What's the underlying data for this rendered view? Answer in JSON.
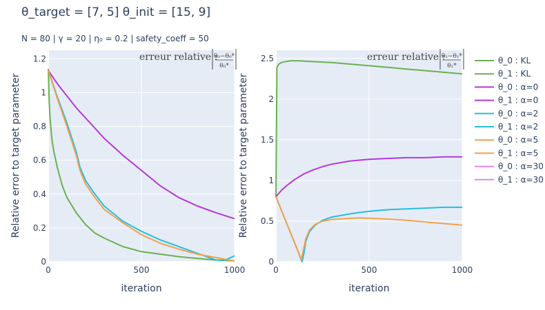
{
  "chart_data": {
    "type": "line",
    "title": "θ_target = [7, 5]     θ_init = [15, 9]",
    "subtitle": "N = 80  |  γ = 20  |  η₀ = 0.2  | safety_coeff = 50",
    "xlabel": "iteration",
    "ylabel": "Relative error to target parameter",
    "grid": true,
    "legend_position": "right",
    "legend": [
      "θ_0 : KL",
      "θ_1 : KL",
      "θ_0 : α=0",
      "θ_1 : α=0",
      "θ_0 : α=2",
      "θ_1 : α=2",
      "θ_0 : α=5",
      "θ_1 : α=5",
      "θ_0 : α=30",
      "θ_1 : α=30"
    ],
    "colors": {
      "KL": "#6ab04c",
      "a0": "#b537d8",
      "a2": "#22bfe0",
      "a5": "#f4a14a",
      "a30": "#ee82ee"
    },
    "panels": [
      {
        "id": "theta0",
        "annotation": "erreur relative :",
        "frac_num": "θ₀−θ₀*",
        "frac_den": "θ₀*",
        "xlim": [
          0,
          1000
        ],
        "ylim": [
          0,
          1.25
        ],
        "xticks": [
          "0",
          "500",
          "1000"
        ],
        "yticks": [
          "0",
          "0.2",
          "0.4",
          "0.6",
          "0.8",
          "1",
          "1.2"
        ],
        "series": [
          {
            "name": "θ_0 : KL",
            "color_key": "KL",
            "x": [
              0,
              5,
              10,
              20,
              30,
              50,
              75,
              100,
              150,
              200,
              250,
              300,
              400,
              500,
              600,
              700,
              800,
              900,
              1000
            ],
            "y": [
              1.14,
              0.95,
              0.84,
              0.72,
              0.65,
              0.55,
              0.45,
              0.38,
              0.29,
              0.22,
              0.17,
              0.14,
              0.09,
              0.06,
              0.045,
              0.03,
              0.02,
              0.01,
              0.005
            ]
          },
          {
            "name": "θ_0 : α=0",
            "color_key": "a0",
            "x": [
              0,
              50,
              100,
              150,
              200,
              250,
              300,
              400,
              500,
              600,
              700,
              800,
              900,
              1000
            ],
            "y": [
              1.13,
              1.05,
              0.98,
              0.91,
              0.85,
              0.79,
              0.73,
              0.63,
              0.54,
              0.45,
              0.38,
              0.33,
              0.29,
              0.255
            ]
          },
          {
            "name": "θ_0 : α=2",
            "color_key": "a2",
            "x": [
              0,
              50,
              100,
              150,
              170,
              200,
              250,
              300,
              400,
              500,
              600,
              700,
              800,
              900,
              950,
              1000
            ],
            "y": [
              1.13,
              0.97,
              0.82,
              0.65,
              0.56,
              0.48,
              0.4,
              0.33,
              0.24,
              0.18,
              0.13,
              0.09,
              0.05,
              0.01,
              0.01,
              0.035
            ]
          },
          {
            "name": "θ_0 : α=5",
            "color_key": "a5",
            "x": [
              0,
              50,
              100,
              150,
              170,
              200,
              250,
              300,
              400,
              500,
              600,
              700,
              800,
              900,
              1000
            ],
            "y": [
              1.13,
              0.96,
              0.8,
              0.63,
              0.54,
              0.46,
              0.38,
              0.31,
              0.23,
              0.16,
              0.11,
              0.075,
              0.045,
              0.025,
              0.005
            ]
          }
        ]
      },
      {
        "id": "theta1",
        "annotation": "erreur relative :",
        "frac_num": "θ₁−θ₁*",
        "frac_den": "θ₁*",
        "xlim": [
          0,
          1000
        ],
        "ylim": [
          0,
          2.6
        ],
        "xticks": [
          "0",
          "500",
          "1000"
        ],
        "yticks": [
          "0",
          "0.5",
          "1",
          "1.5",
          "2",
          "2.5"
        ],
        "series": [
          {
            "name": "θ_1 : KL",
            "color_key": "KL",
            "x": [
              0,
              5,
              15,
              30,
              50,
              80,
              120,
              200,
              300,
              400,
              500,
              600,
              700,
              800,
              900,
              1000
            ],
            "y": [
              0.8,
              2.39,
              2.43,
              2.45,
              2.46,
              2.47,
              2.47,
              2.46,
              2.45,
              2.43,
              2.41,
              2.39,
              2.37,
              2.35,
              2.33,
              2.31
            ]
          },
          {
            "name": "θ_1 : α=0",
            "color_key": "a0",
            "x": [
              0,
              30,
              60,
              100,
              150,
              200,
              250,
              300,
              400,
              500,
              600,
              700,
              800,
              900,
              1000
            ],
            "y": [
              0.8,
              0.88,
              0.94,
              1.01,
              1.08,
              1.13,
              1.17,
              1.2,
              1.24,
              1.26,
              1.27,
              1.28,
              1.28,
              1.29,
              1.29
            ]
          },
          {
            "name": "θ_1 : α=2",
            "color_key": "a2",
            "x": [
              0,
              30,
              60,
              90,
              120,
              140,
              150,
              160,
              180,
              210,
              250,
              300,
              400,
              500,
              600,
              700,
              800,
              900,
              1000
            ],
            "y": [
              0.8,
              0.63,
              0.46,
              0.29,
              0.12,
              0.0,
              0.1,
              0.25,
              0.37,
              0.45,
              0.51,
              0.55,
              0.59,
              0.62,
              0.64,
              0.65,
              0.66,
              0.67,
              0.67
            ]
          },
          {
            "name": "θ_1 : α=5",
            "color_key": "a5",
            "x": [
              0,
              30,
              60,
              90,
              120,
              135,
              145,
              160,
              180,
              210,
              250,
              300,
              400,
              450,
              500,
              600,
              700,
              800,
              900,
              1000
            ],
            "y": [
              0.8,
              0.63,
              0.46,
              0.29,
              0.12,
              0.02,
              0.12,
              0.28,
              0.39,
              0.46,
              0.5,
              0.52,
              0.535,
              0.54,
              0.535,
              0.525,
              0.51,
              0.49,
              0.47,
              0.45
            ]
          }
        ]
      }
    ]
  }
}
